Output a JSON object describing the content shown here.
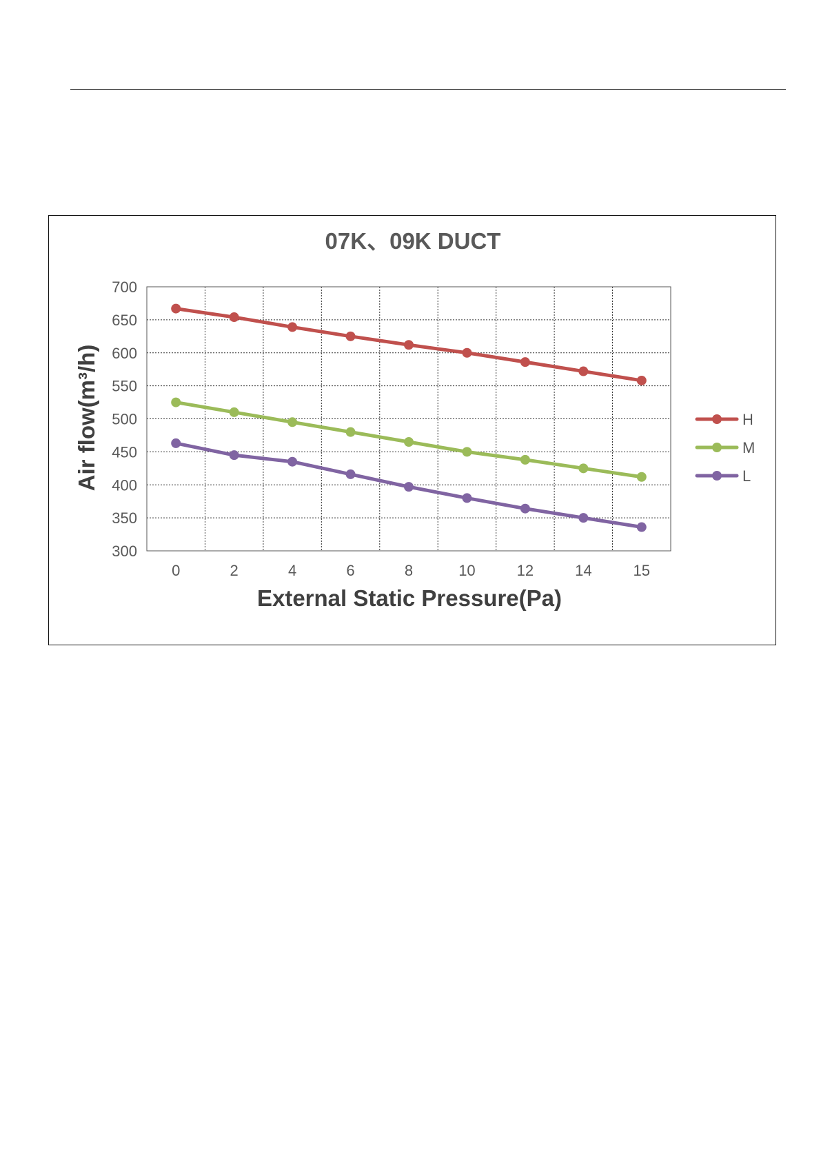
{
  "chart_data": {
    "type": "line",
    "title": "07K、09K  DUCT",
    "xlabel": "External Static Pressure(Pa)",
    "ylabel": "Air  flow(m³/h)",
    "x": [
      "0",
      "2",
      "4",
      "6",
      "8",
      "10",
      "12",
      "14",
      "15"
    ],
    "ylim": [
      300,
      700
    ],
    "yticks": [
      300,
      350,
      400,
      450,
      500,
      550,
      600,
      650,
      700
    ],
    "grid": true,
    "legend": "right",
    "series": [
      {
        "name": "H",
        "color": "#c0504d",
        "values": [
          667,
          654,
          639,
          625,
          612,
          600,
          586,
          572,
          558
        ]
      },
      {
        "name": "M",
        "color": "#9bbb59",
        "values": [
          525,
          510,
          495,
          480,
          465,
          450,
          438,
          425,
          412
        ]
      },
      {
        "name": "L",
        "color": "#8064a2",
        "values": [
          463,
          445,
          435,
          416,
          397,
          380,
          364,
          350,
          336
        ]
      }
    ]
  }
}
